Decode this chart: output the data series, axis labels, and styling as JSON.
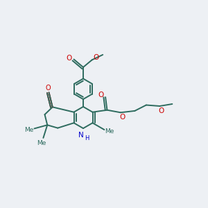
{
  "bg_color": "#edf0f4",
  "bond_color": "#2d6b5e",
  "O_color": "#cc0000",
  "N_color": "#0000cc",
  "line_width": 1.4,
  "figsize": [
    3.0,
    3.0
  ],
  "dpi": 100,
  "xlim": [
    0,
    10
  ],
  "ylim": [
    0,
    10
  ]
}
